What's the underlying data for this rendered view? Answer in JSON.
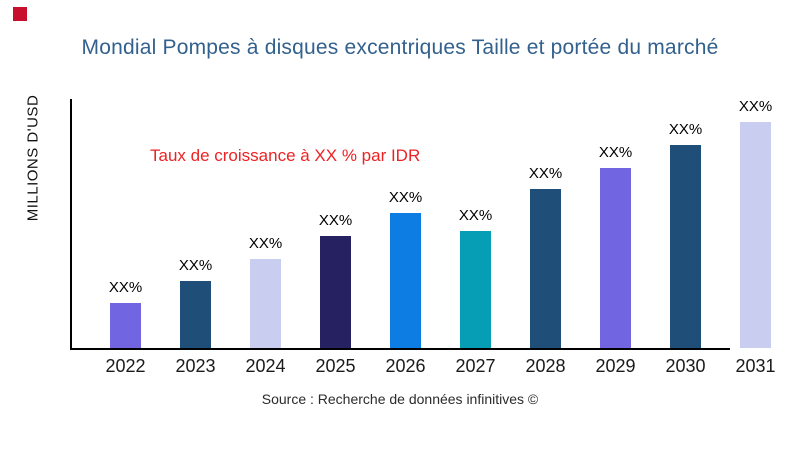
{
  "page": {
    "background": "#ffffff"
  },
  "logo": {
    "name": "red-square-logo-mark",
    "color": "#c8102e"
  },
  "header": {
    "title": "Mondial Pompes à disques excentriques Taille et portée du marché",
    "color": "#33618e"
  },
  "annotation": {
    "text": "Taux de croissance à XX % par IDR",
    "color": "#ed2224"
  },
  "axes": {
    "y_label": "MILLIONS D'USD",
    "axis_color": "#000000"
  },
  "footer": {
    "source": "Source : Recherche de données infinitives ©"
  },
  "chart_data": {
    "type": "bar",
    "title": "Mondial Pompes à disques excentriques Taille et portée du marché",
    "categories": [
      "2022",
      "2023",
      "2024",
      "2025",
      "2026",
      "2027",
      "2028",
      "2029",
      "2030",
      "2031"
    ],
    "values": [
      45,
      67,
      89,
      112,
      135,
      117,
      159,
      180,
      203,
      226
    ],
    "values_note": "relative bar heights in px; no numeric y-axis ticks shown",
    "bar_labels": [
      "XX%",
      "XX%",
      "XX%",
      "XX%",
      "XX%",
      "XX%",
      "XX%",
      "XX%",
      "XX%",
      "XX%"
    ],
    "bar_colors": [
      "#7165e2",
      "#1f4e79",
      "#c9cdf0",
      "#262161",
      "#0d7de4",
      "#069eb4",
      "#1f4e79",
      "#7165e2",
      "#1f4e79",
      "#c9cdf0"
    ],
    "xlabel": "",
    "ylabel": "MILLIONS D'USD",
    "ylim": [
      0,
      null
    ],
    "grid": false,
    "legend": false,
    "annotations": [
      "Taux de croissance à XX % par IDR"
    ]
  }
}
